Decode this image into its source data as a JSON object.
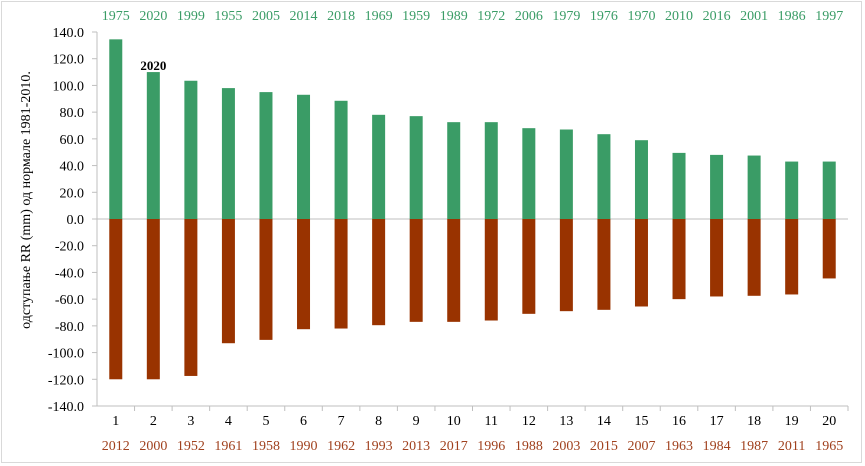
{
  "chart_data": {
    "type": "bar",
    "title": "",
    "xlabel": "",
    "ylabel": "одступање RR (mm)  од  нормале 1981-2010.",
    "ylim": [
      -140,
      140
    ],
    "y_ticks": [
      "140.0",
      "120.0",
      "100.0",
      "80.0",
      "60.0",
      "40.0",
      "20.0",
      "0.0",
      "-20.0",
      "-40.0",
      "-60.0",
      "-80.0",
      "-100.0",
      "-120.0",
      "-140.0"
    ],
    "y_tick_values": [
      140,
      120,
      100,
      80,
      60,
      40,
      20,
      0,
      -20,
      -40,
      -60,
      -80,
      -100,
      -120,
      -140
    ],
    "categories": [
      "1",
      "2",
      "3",
      "4",
      "5",
      "6",
      "7",
      "8",
      "9",
      "10",
      "11",
      "12",
      "13",
      "14",
      "15",
      "16",
      "17",
      "18",
      "19",
      "20"
    ],
    "series": [
      {
        "name": "positive",
        "color": "#3a9c66",
        "labels_color": "#3a9c66",
        "years": [
          "1975",
          "2020",
          "1999",
          "1955",
          "2005",
          "2014",
          "2018",
          "1969",
          "1959",
          "1989",
          "1972",
          "2006",
          "1979",
          "1976",
          "1970",
          "2010",
          "2016",
          "2001",
          "1986",
          "1997"
        ],
        "values": [
          134.5,
          110.0,
          103.5,
          98.0,
          95.0,
          93.0,
          88.5,
          78.0,
          77.0,
          72.5,
          72.5,
          68.0,
          67.0,
          63.5,
          59.0,
          49.5,
          48.0,
          47.5,
          43.0,
          43.0
        ]
      },
      {
        "name": "negative",
        "color": "#993300",
        "labels_color": "#a0411e",
        "years": [
          "2012",
          "2000",
          "1952",
          "1961",
          "1958",
          "1990",
          "1962",
          "1993",
          "2013",
          "2017",
          "1996",
          "1988",
          "2003",
          "2015",
          "2007",
          "1963",
          "1984",
          "1987",
          "2011",
          "1965"
        ],
        "values": [
          -120.0,
          -120.0,
          -117.5,
          -93.0,
          -90.5,
          -82.5,
          -82.0,
          -79.5,
          -77.0,
          -77.0,
          -76.0,
          -71.0,
          -69.0,
          -68.0,
          -65.5,
          -60.0,
          -58.0,
          -57.5,
          -56.5,
          -44.5
        ]
      }
    ],
    "annotations": [
      {
        "text": "2020",
        "category": "2"
      }
    ]
  }
}
